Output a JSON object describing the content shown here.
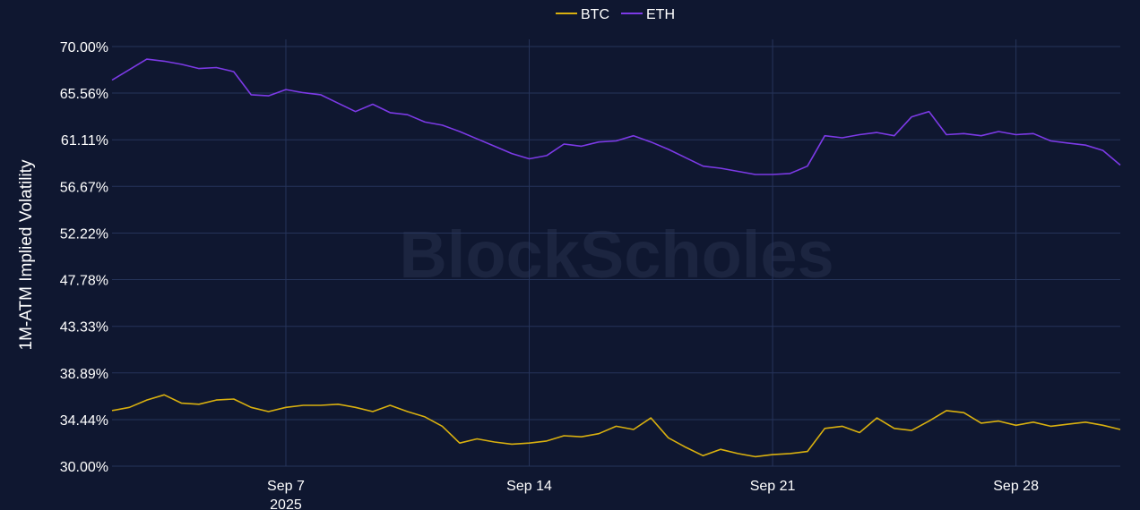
{
  "chart_data": {
    "type": "line",
    "title": "",
    "xlabel": "",
    "ylabel": "1M-ATM Implied Volatility",
    "ylim": [
      30.0,
      70.0
    ],
    "y_ticks": [
      "30.00%",
      "34.44%",
      "38.89%",
      "43.33%",
      "47.78%",
      "52.22%",
      "56.67%",
      "61.11%",
      "65.56%",
      "70.00%"
    ],
    "xlim": [
      "2025-09-02",
      "2025-10-01"
    ],
    "x_ticks": [
      {
        "date": "2025-09-07",
        "label": "Sep 7",
        "sublabel": "2025"
      },
      {
        "date": "2025-09-14",
        "label": "Sep 14",
        "sublabel": ""
      },
      {
        "date": "2025-09-21",
        "label": "Sep 21",
        "sublabel": ""
      },
      {
        "date": "2025-09-28",
        "label": "Sep 28",
        "sublabel": ""
      }
    ],
    "grid": true,
    "legend_position": "top-center",
    "watermark": "BlockScholes",
    "series": [
      {
        "name": "BTC",
        "color": "#d9b00f",
        "points": [
          [
            "2025-09-02",
            35.3
          ],
          [
            "2025-09-02T12:00",
            35.6
          ],
          [
            "2025-09-03",
            36.3
          ],
          [
            "2025-09-03T12:00",
            36.8
          ],
          [
            "2025-09-04",
            36.0
          ],
          [
            "2025-09-04T12:00",
            35.9
          ],
          [
            "2025-09-05",
            36.3
          ],
          [
            "2025-09-05T12:00",
            36.4
          ],
          [
            "2025-09-06",
            35.6
          ],
          [
            "2025-09-06T12:00",
            35.2
          ],
          [
            "2025-09-07",
            35.6
          ],
          [
            "2025-09-07T12:00",
            35.8
          ],
          [
            "2025-09-08",
            35.8
          ],
          [
            "2025-09-08T12:00",
            35.9
          ],
          [
            "2025-09-09",
            35.6
          ],
          [
            "2025-09-09T12:00",
            35.2
          ],
          [
            "2025-09-10",
            35.8
          ],
          [
            "2025-09-10T12:00",
            35.2
          ],
          [
            "2025-09-11",
            34.7
          ],
          [
            "2025-09-11T12:00",
            33.8
          ],
          [
            "2025-09-12",
            32.2
          ],
          [
            "2025-09-12T12:00",
            32.6
          ],
          [
            "2025-09-13",
            32.3
          ],
          [
            "2025-09-13T12:00",
            32.1
          ],
          [
            "2025-09-14",
            32.2
          ],
          [
            "2025-09-14T12:00",
            32.4
          ],
          [
            "2025-09-15",
            32.9
          ],
          [
            "2025-09-15T12:00",
            32.8
          ],
          [
            "2025-09-16",
            33.1
          ],
          [
            "2025-09-16T12:00",
            33.8
          ],
          [
            "2025-09-17",
            33.5
          ],
          [
            "2025-09-17T12:00",
            34.6
          ],
          [
            "2025-09-18",
            32.7
          ],
          [
            "2025-09-18T12:00",
            31.8
          ],
          [
            "2025-09-19",
            31.0
          ],
          [
            "2025-09-19T12:00",
            31.6
          ],
          [
            "2025-09-20",
            31.2
          ],
          [
            "2025-09-20T12:00",
            30.9
          ],
          [
            "2025-09-21",
            31.1
          ],
          [
            "2025-09-21T12:00",
            31.2
          ],
          [
            "2025-09-22",
            31.4
          ],
          [
            "2025-09-22T12:00",
            33.6
          ],
          [
            "2025-09-23",
            33.8
          ],
          [
            "2025-09-23T12:00",
            33.2
          ],
          [
            "2025-09-24",
            34.6
          ],
          [
            "2025-09-24T12:00",
            33.6
          ],
          [
            "2025-09-25",
            33.4
          ],
          [
            "2025-09-25T12:00",
            34.3
          ],
          [
            "2025-09-26",
            35.3
          ],
          [
            "2025-09-26T12:00",
            35.1
          ],
          [
            "2025-09-27",
            34.1
          ],
          [
            "2025-09-27T12:00",
            34.3
          ],
          [
            "2025-09-28",
            33.9
          ],
          [
            "2025-09-28T12:00",
            34.2
          ],
          [
            "2025-09-29",
            33.8
          ],
          [
            "2025-09-29T12:00",
            34.0
          ],
          [
            "2025-09-30",
            34.2
          ],
          [
            "2025-09-30T12:00",
            33.9
          ],
          [
            "2025-10-01",
            33.5
          ]
        ]
      },
      {
        "name": "ETH",
        "color": "#7c3ae6",
        "points": [
          [
            "2025-09-02",
            66.8
          ],
          [
            "2025-09-02T12:00",
            67.8
          ],
          [
            "2025-09-03",
            68.8
          ],
          [
            "2025-09-03T12:00",
            68.6
          ],
          [
            "2025-09-04",
            68.3
          ],
          [
            "2025-09-04T12:00",
            67.9
          ],
          [
            "2025-09-05",
            68.0
          ],
          [
            "2025-09-05T12:00",
            67.6
          ],
          [
            "2025-09-06",
            65.4
          ],
          [
            "2025-09-06T12:00",
            65.3
          ],
          [
            "2025-09-07",
            65.9
          ],
          [
            "2025-09-07T12:00",
            65.6
          ],
          [
            "2025-09-08",
            65.4
          ],
          [
            "2025-09-08T12:00",
            64.6
          ],
          [
            "2025-09-09",
            63.8
          ],
          [
            "2025-09-09T12:00",
            64.5
          ],
          [
            "2025-09-10",
            63.7
          ],
          [
            "2025-09-10T12:00",
            63.5
          ],
          [
            "2025-09-11",
            62.8
          ],
          [
            "2025-09-11T12:00",
            62.5
          ],
          [
            "2025-09-12",
            61.9
          ],
          [
            "2025-09-12T12:00",
            61.2
          ],
          [
            "2025-09-13",
            60.5
          ],
          [
            "2025-09-13T12:00",
            59.8
          ],
          [
            "2025-09-14",
            59.3
          ],
          [
            "2025-09-14T12:00",
            59.6
          ],
          [
            "2025-09-15",
            60.7
          ],
          [
            "2025-09-15T12:00",
            60.5
          ],
          [
            "2025-09-16",
            60.9
          ],
          [
            "2025-09-16T12:00",
            61.0
          ],
          [
            "2025-09-17",
            61.5
          ],
          [
            "2025-09-17T12:00",
            60.9
          ],
          [
            "2025-09-18",
            60.2
          ],
          [
            "2025-09-18T12:00",
            59.4
          ],
          [
            "2025-09-19",
            58.6
          ],
          [
            "2025-09-19T12:00",
            58.4
          ],
          [
            "2025-09-20",
            58.1
          ],
          [
            "2025-09-20T12:00",
            57.8
          ],
          [
            "2025-09-21",
            57.8
          ],
          [
            "2025-09-21T12:00",
            57.9
          ],
          [
            "2025-09-22",
            58.6
          ],
          [
            "2025-09-22T12:00",
            61.5
          ],
          [
            "2025-09-23",
            61.3
          ],
          [
            "2025-09-23T12:00",
            61.6
          ],
          [
            "2025-09-24",
            61.8
          ],
          [
            "2025-09-24T12:00",
            61.5
          ],
          [
            "2025-09-25",
            63.3
          ],
          [
            "2025-09-25T12:00",
            63.8
          ],
          [
            "2025-09-26",
            61.6
          ],
          [
            "2025-09-26T12:00",
            61.7
          ],
          [
            "2025-09-27",
            61.5
          ],
          [
            "2025-09-27T12:00",
            61.9
          ],
          [
            "2025-09-28",
            61.6
          ],
          [
            "2025-09-28T12:00",
            61.7
          ],
          [
            "2025-09-29",
            61.0
          ],
          [
            "2025-09-29T12:00",
            60.8
          ],
          [
            "2025-09-30",
            60.6
          ],
          [
            "2025-09-30T12:00",
            60.1
          ],
          [
            "2025-10-01",
            58.7
          ]
        ]
      }
    ]
  }
}
